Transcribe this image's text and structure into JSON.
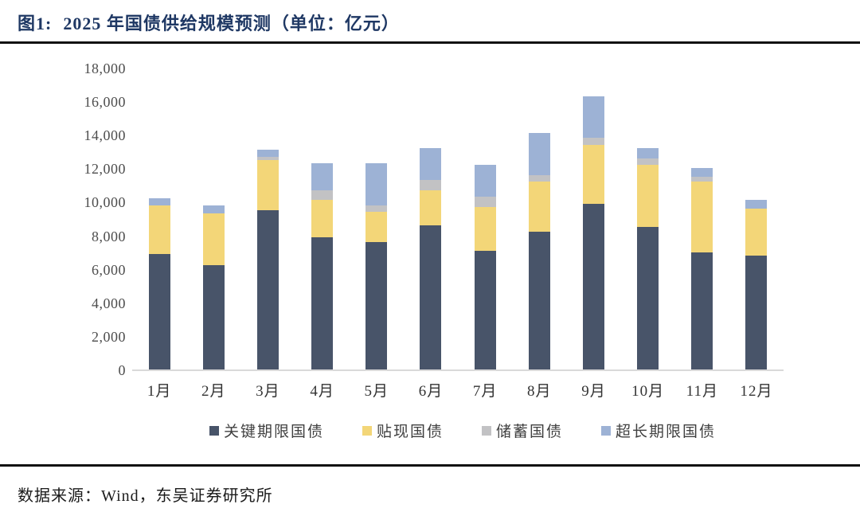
{
  "header": {
    "figure_label": "图1:",
    "title": "2025 年国债供给规模预测（单位：亿元）"
  },
  "footer": {
    "source": "数据来源：Wind，东吴证券研究所"
  },
  "colors": {
    "title_navy": "#1F3864",
    "series_key_tenor": "#485469",
    "series_discount": "#F3D678",
    "series_savings": "#C2C2C4",
    "series_ultra_long": "#9DB2D5",
    "axis_line": "#D9D9D9"
  },
  "chart_data": {
    "type": "bar",
    "subtype": "stacked",
    "title": "2025 年国债供给规模预测（单位：亿元）",
    "xlabel": "",
    "ylabel": "",
    "ylim": [
      0,
      18000
    ],
    "ytick_step": 2000,
    "yticks": [
      "0",
      "2,000",
      "4,000",
      "6,000",
      "8,000",
      "10,000",
      "12,000",
      "14,000",
      "16,000",
      "18,000"
    ],
    "grid": false,
    "legend_position": "bottom",
    "categories": [
      "1月",
      "2月",
      "3月",
      "4月",
      "5月",
      "6月",
      "7月",
      "8月",
      "9月",
      "10月",
      "11月",
      "12月"
    ],
    "series": [
      {
        "name": "关键期限国债",
        "color": "#485469",
        "values": [
          6900,
          6200,
          9500,
          7900,
          7600,
          8600,
          7100,
          8200,
          9900,
          8500,
          7000,
          6800
        ]
      },
      {
        "name": "贴现国债",
        "color": "#F3D678",
        "values": [
          2900,
          3100,
          3000,
          2200,
          1800,
          2100,
          2600,
          3000,
          3500,
          3700,
          4200,
          2800
        ]
      },
      {
        "name": "储蓄国债",
        "color": "#C2C2C4",
        "values": [
          0,
          0,
          200,
          600,
          400,
          600,
          600,
          400,
          400,
          400,
          300,
          0
        ]
      },
      {
        "name": "超长期限国债",
        "color": "#9DB2D5",
        "values": [
          400,
          500,
          400,
          1600,
          2500,
          1900,
          1900,
          2500,
          2500,
          600,
          500,
          500
        ]
      }
    ],
    "totals": [
      10200,
      9800,
      13100,
      12300,
      12300,
      13200,
      12200,
      14100,
      16300,
      13200,
      12000,
      10100
    ]
  }
}
